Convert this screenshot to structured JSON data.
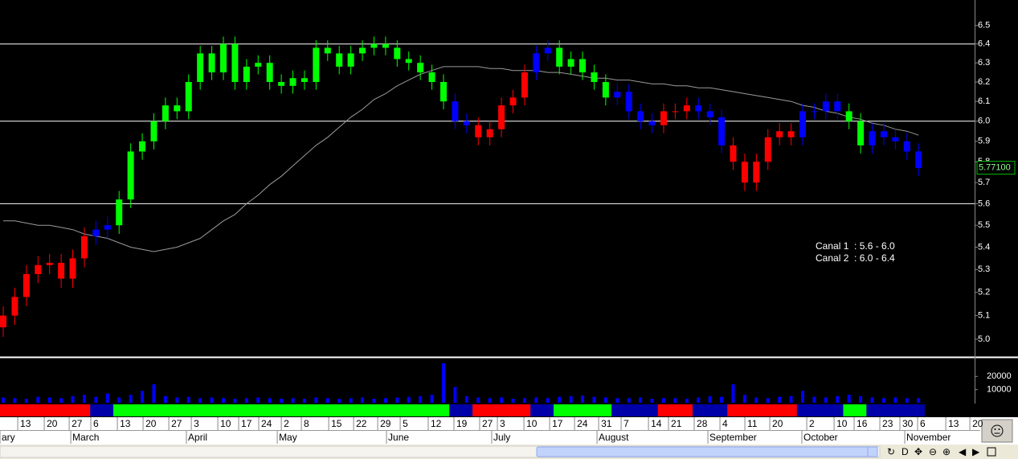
{
  "chart_data": {
    "type": "candlestick",
    "log_scale": true,
    "xlim": [
      -0.28,
      83.84
    ],
    "ylim": [
      4.93,
      6.64
    ],
    "yticks": [
      {
        "value": 5.0,
        "label": "5.0"
      },
      5.1,
      5.2,
      5.3,
      5.4,
      5.5,
      5.6,
      5.7,
      5.8,
      5.9,
      {
        "value": 6.0,
        "label": "6.0"
      },
      6.1,
      6.2,
      6.3,
      6.4,
      6.5
    ],
    "hlines": [
      5.6,
      6.0,
      6.4
    ],
    "open": [
      5.05,
      5.1,
      5.18,
      5.28,
      5.32,
      5.33,
      5.26,
      5.35,
      5.45,
      5.48,
      5.5,
      5.62,
      5.85,
      5.9,
      6.0,
      6.08,
      6.05,
      6.2,
      6.35,
      6.25,
      6.4,
      6.2,
      6.28,
      6.3,
      6.2,
      6.18,
      6.22,
      6.2,
      6.38,
      6.35,
      6.28,
      6.35,
      6.38,
      6.4,
      6.38,
      6.32,
      6.3,
      6.25,
      6.2,
      6.1,
      6.0,
      5.98,
      5.92,
      5.96,
      6.08,
      6.12,
      6.25,
      6.35,
      6.38,
      6.28,
      6.32,
      6.25,
      6.2,
      6.12,
      6.15,
      6.05,
      6.0,
      5.98,
      6.05,
      6.05,
      6.08,
      6.05,
      6.02,
      5.88,
      5.8,
      5.7,
      5.8,
      5.92,
      5.95,
      5.92,
      6.05,
      6.05,
      6.1,
      6.05,
      6.0,
      5.88,
      5.95,
      5.92,
      5.9,
      5.85
    ],
    "high": [
      5.14,
      5.22,
      5.32,
      5.36,
      5.37,
      5.37,
      5.39,
      5.49,
      5.52,
      5.54,
      5.66,
      5.89,
      5.94,
      6.04,
      6.12,
      6.12,
      6.24,
      6.39,
      6.39,
      6.44,
      6.44,
      6.32,
      6.34,
      6.34,
      6.24,
      6.26,
      6.26,
      6.42,
      6.42,
      6.39,
      6.39,
      6.42,
      6.44,
      6.44,
      6.42,
      6.36,
      6.34,
      6.29,
      6.24,
      6.14,
      6.04,
      6.02,
      6.0,
      6.12,
      6.16,
      6.29,
      6.39,
      6.42,
      6.42,
      6.36,
      6.36,
      6.29,
      6.24,
      6.19,
      6.19,
      6.09,
      6.04,
      6.09,
      6.09,
      6.12,
      6.12,
      6.09,
      6.06,
      5.92,
      5.84,
      5.84,
      5.96,
      5.99,
      5.99,
      6.09,
      6.09,
      6.14,
      6.14,
      6.09,
      6.04,
      5.99,
      5.99,
      5.96,
      5.94,
      5.89
    ],
    "low": [
      5.01,
      5.06,
      5.14,
      5.24,
      5.28,
      5.22,
      5.22,
      5.31,
      5.41,
      5.44,
      5.46,
      5.58,
      5.81,
      5.86,
      5.96,
      6.01,
      6.01,
      6.16,
      6.21,
      6.21,
      6.16,
      6.16,
      6.24,
      6.16,
      6.14,
      6.14,
      6.16,
      6.16,
      6.31,
      6.24,
      6.24,
      6.31,
      6.34,
      6.34,
      6.28,
      6.26,
      6.21,
      6.16,
      6.06,
      5.96,
      5.94,
      5.88,
      5.88,
      5.92,
      6.04,
      6.08,
      6.21,
      6.31,
      6.24,
      6.24,
      6.21,
      6.16,
      6.08,
      6.08,
      6.01,
      5.96,
      5.94,
      5.94,
      6.01,
      6.01,
      6.01,
      5.98,
      5.84,
      5.76,
      5.66,
      5.66,
      5.76,
      5.88,
      5.88,
      5.88,
      6.01,
      6.01,
      6.01,
      5.96,
      5.84,
      5.84,
      5.88,
      5.86,
      5.81,
      5.73
    ],
    "close": [
      5.1,
      5.18,
      5.28,
      5.32,
      5.33,
      5.26,
      5.35,
      5.45,
      5.48,
      5.5,
      5.62,
      5.85,
      5.9,
      6.0,
      6.08,
      6.05,
      6.2,
      6.35,
      6.25,
      6.4,
      6.2,
      6.28,
      6.3,
      6.2,
      6.18,
      6.22,
      6.2,
      6.38,
      6.35,
      6.28,
      6.35,
      6.38,
      6.4,
      6.38,
      6.32,
      6.3,
      6.25,
      6.2,
      6.1,
      6.0,
      5.98,
      5.92,
      5.96,
      6.08,
      6.12,
      6.25,
      6.35,
      6.38,
      6.28,
      6.32,
      6.25,
      6.2,
      6.12,
      6.15,
      6.05,
      6.0,
      5.98,
      6.05,
      6.05,
      6.08,
      6.05,
      6.02,
      5.88,
      5.8,
      5.7,
      5.8,
      5.92,
      5.95,
      5.92,
      6.05,
      6.05,
      6.1,
      6.05,
      6.0,
      5.88,
      5.95,
      5.92,
      5.9,
      5.85,
      5.77
    ],
    "trend_colors": [
      "red",
      "red",
      "red",
      "red",
      "red",
      "red",
      "red",
      "red",
      "blue",
      "blue",
      "lime",
      "lime",
      "lime",
      "lime",
      "lime",
      "lime",
      "lime",
      "lime",
      "lime",
      "lime",
      "lime",
      "lime",
      "lime",
      "lime",
      "lime",
      "lime",
      "lime",
      "lime",
      "lime",
      "lime",
      "lime",
      "lime",
      "lime",
      "lime",
      "lime",
      "lime",
      "lime",
      "lime",
      "lime",
      "blue",
      "blue",
      "red",
      "red",
      "red",
      "red",
      "red",
      "blue",
      "blue",
      "lime",
      "lime",
      "lime",
      "lime",
      "lime",
      "blue",
      "blue",
      "blue",
      "blue",
      "red",
      "red",
      "red",
      "blue",
      "blue",
      "blue",
      "red",
      "red",
      "red",
      "red",
      "red",
      "red",
      "blue",
      "blue",
      "blue",
      "blue",
      "lime",
      "lime",
      "blue",
      "blue",
      "blue",
      "blue",
      "blue"
    ],
    "ma": {
      "color": "#9a9a9a",
      "values": [
        5.52,
        5.52,
        5.51,
        5.5,
        5.5,
        5.49,
        5.48,
        5.46,
        5.45,
        5.44,
        5.42,
        5.4,
        5.39,
        5.38,
        5.39,
        5.4,
        5.42,
        5.44,
        5.48,
        5.52,
        5.55,
        5.6,
        5.64,
        5.69,
        5.73,
        5.78,
        5.83,
        5.88,
        5.92,
        5.97,
        6.02,
        6.06,
        6.11,
        6.14,
        6.18,
        6.21,
        6.24,
        6.26,
        6.28,
        6.28,
        6.28,
        6.28,
        6.27,
        6.27,
        6.26,
        6.26,
        6.26,
        6.25,
        6.25,
        6.24,
        6.23,
        6.22,
        6.22,
        6.21,
        6.21,
        6.2,
        6.19,
        6.19,
        6.18,
        6.18,
        6.17,
        6.17,
        6.16,
        6.15,
        6.14,
        6.13,
        6.12,
        6.11,
        6.1,
        6.08,
        6.07,
        6.05,
        6.04,
        6.02,
        6.01,
        5.99,
        5.98,
        5.96,
        5.95,
        5.93
      ]
    },
    "volume": {
      "color": "#0000ff",
      "ylim": [
        0,
        33000
      ],
      "yticks": [
        10000,
        20000
      ],
      "values": [
        4000,
        3500,
        3000,
        4500,
        4000,
        3500,
        5000,
        6000,
        4500,
        7000,
        4000,
        6000,
        9000,
        14000,
        5000,
        4000,
        4500,
        3500,
        4000,
        3500,
        3000,
        3500,
        4000,
        3500,
        3000,
        3500,
        3000,
        4000,
        3500,
        3000,
        3500,
        4000,
        3000,
        3500,
        4000,
        4500,
        5000,
        6000,
        30000,
        12000,
        5000,
        4000,
        3500,
        4000,
        3000,
        3500,
        4000,
        3500,
        4500,
        5000,
        5500,
        4500,
        4000,
        3500,
        3500,
        4000,
        3000,
        3500,
        3500,
        3000,
        4000,
        5000,
        4500,
        14000,
        6000,
        4000,
        3500,
        4500,
        5000,
        9000,
        4500,
        4000,
        5000,
        6000,
        5000,
        4000,
        3500,
        4000,
        3500,
        3500
      ]
    },
    "last_price": 5.771,
    "last_price_label": "5.77100",
    "annotations": [
      "Canal 1  : 5.6 - 6.0",
      "Canal 2  : 6.0 - 6.4"
    ],
    "day_ticks": [
      {
        "value": 1.25,
        "label": "13"
      },
      {
        "value": 3.54,
        "label": "20"
      },
      {
        "value": 5.69,
        "label": "27"
      },
      {
        "value": 7.56,
        "label": "6"
      },
      {
        "value": 9.85,
        "label": "13"
      },
      {
        "value": 12.07,
        "label": "20"
      },
      {
        "value": 14.29,
        "label": "27"
      },
      {
        "value": 16.23,
        "label": "3"
      },
      {
        "value": 18.52,
        "label": "10"
      },
      {
        "value": 20.32,
        "label": "17"
      },
      {
        "value": 22.05,
        "label": "24"
      },
      {
        "value": 24.0,
        "label": "2"
      },
      {
        "value": 25.73,
        "label": "8"
      },
      {
        "value": 28.09,
        "label": "15"
      },
      {
        "value": 30.24,
        "label": "22"
      },
      {
        "value": 32.32,
        "label": "29"
      },
      {
        "value": 34.26,
        "label": "5"
      },
      {
        "value": 36.68,
        "label": "12"
      },
      {
        "value": 38.9,
        "label": "19"
      },
      {
        "value": 41.12,
        "label": "27"
      },
      {
        "value": 42.65,
        "label": "3"
      },
      {
        "value": 44.94,
        "label": "10"
      },
      {
        "value": 47.16,
        "label": "17"
      },
      {
        "value": 49.31,
        "label": "24"
      },
      {
        "value": 51.39,
        "label": "31"
      },
      {
        "value": 53.33,
        "label": "7"
      },
      {
        "value": 55.69,
        "label": "14"
      },
      {
        "value": 57.42,
        "label": "21"
      },
      {
        "value": 59.64,
        "label": "28"
      },
      {
        "value": 61.86,
        "label": "4"
      },
      {
        "value": 64.01,
        "label": "11"
      },
      {
        "value": 66.16,
        "label": "20"
      },
      {
        "value": 69.35,
        "label": "2"
      },
      {
        "value": 71.71,
        "label": "10"
      },
      {
        "value": 73.44,
        "label": "16"
      },
      {
        "value": 75.66,
        "label": "23"
      },
      {
        "value": 77.39,
        "label": "30"
      },
      {
        "value": 78.92,
        "label": "6"
      },
      {
        "value": 81.35,
        "label": "13"
      },
      {
        "value": 83.43,
        "label": "20"
      }
    ],
    "month_ticks": [
      {
        "value": -0.28,
        "label": "ary"
      },
      {
        "value": 5.83,
        "label": "March"
      },
      {
        "value": 15.81,
        "label": "April"
      },
      {
        "value": 23.65,
        "label": "May"
      },
      {
        "value": 33.08,
        "label": "June"
      },
      {
        "value": 42.16,
        "label": "July"
      },
      {
        "value": 51.25,
        "label": "August"
      },
      {
        "value": 60.82,
        "label": "September"
      },
      {
        "value": 68.93,
        "label": "October"
      },
      {
        "value": 77.81,
        "label": "November"
      }
    ]
  }
}
